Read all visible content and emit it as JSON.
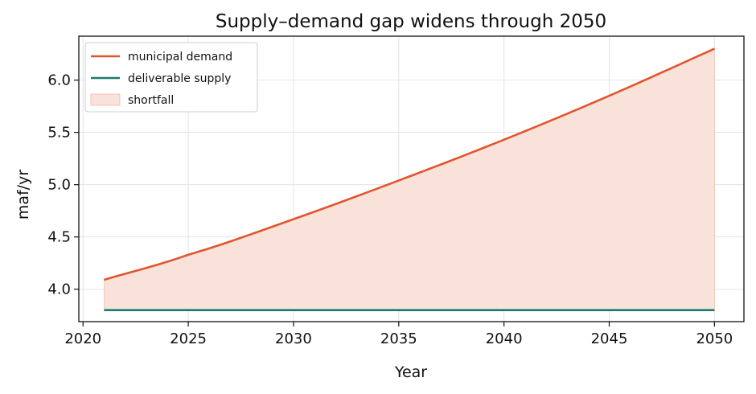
{
  "chart_data": {
    "type": "line",
    "title": "Supply–demand gap widens through 2050",
    "xlabel": "Year",
    "ylabel": "maf/yr",
    "xlim": [
      2019.8,
      2051.4
    ],
    "ylim": [
      3.69,
      6.42
    ],
    "xticks": [
      2020,
      2025,
      2030,
      2035,
      2040,
      2045,
      2050
    ],
    "yticks": [
      4.0,
      4.5,
      5.0,
      5.5,
      6.0
    ],
    "ytick_labels": [
      "4.0",
      "4.5",
      "5.0",
      "5.5",
      "6.0"
    ],
    "grid": true,
    "legend_position": "upper-left",
    "series": [
      {
        "name": "municipal demand",
        "color": "#e0562e",
        "x": [
          2021,
          2025,
          2030,
          2035,
          2040,
          2045,
          2050
        ],
        "y": [
          4.09,
          4.33,
          4.67,
          5.04,
          5.43,
          5.85,
          6.3
        ]
      },
      {
        "name": "deliverable supply",
        "color": "#1a7a70",
        "x": [
          2021,
          2050
        ],
        "y": [
          3.8,
          3.8
        ]
      }
    ],
    "fill": {
      "name": "shortfall",
      "color": "#f8e2da",
      "edge_color": "#f0b8a6",
      "between": [
        "municipal demand",
        "deliverable supply"
      ]
    }
  }
}
